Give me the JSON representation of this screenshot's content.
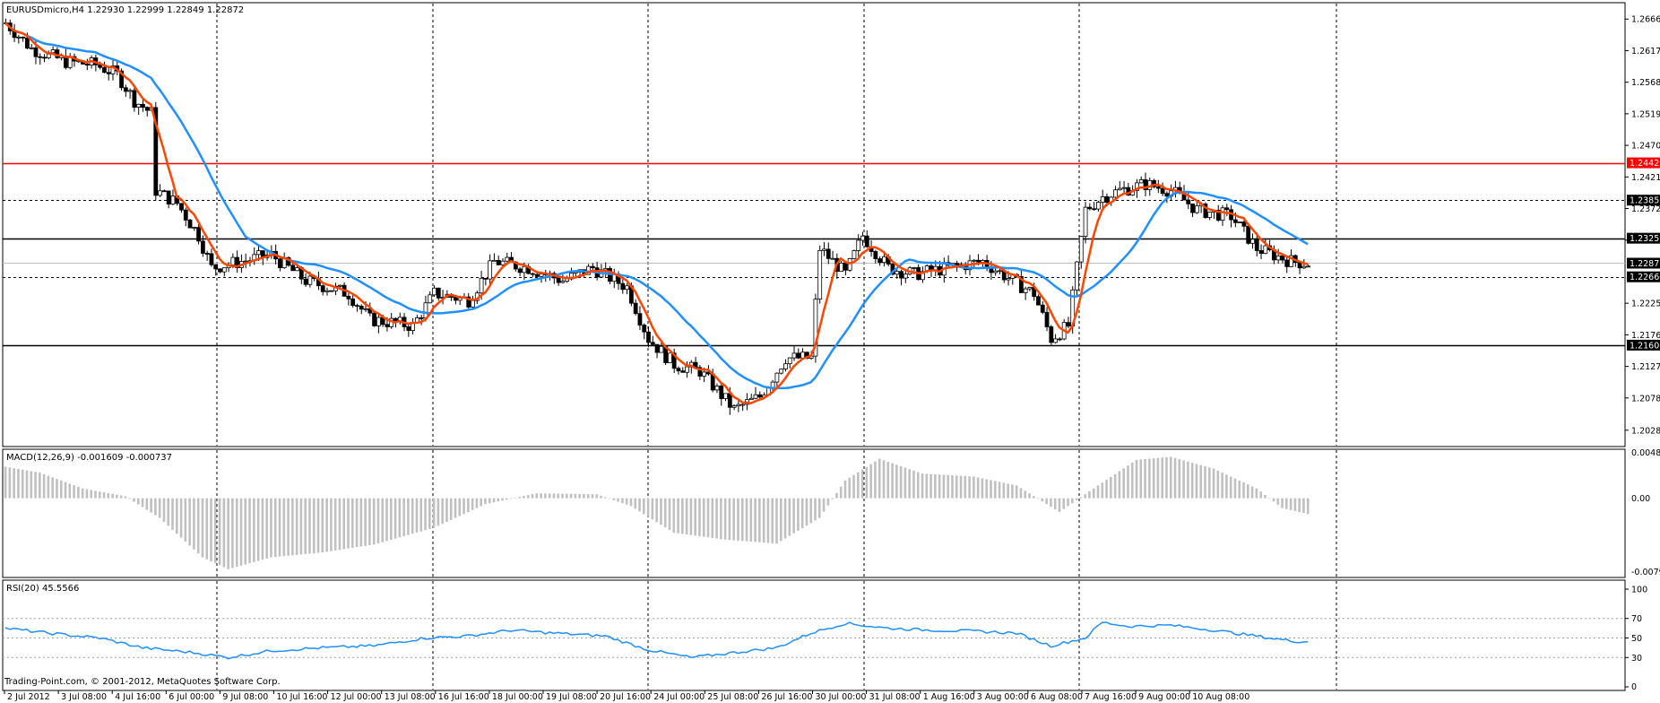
{
  "main_title": "EURUSDmicro,H4  1.22930 1.22999 1.22849 1.22872",
  "macd_title": "MACD(12,26,9) -0.001609 -0.000737",
  "rsi_title": "RSI(20) 45.5566",
  "copyright": "Trading-Point.com, © 2001-2012, MetaQuotes Software Corp.",
  "colors": {
    "up_candle": "#ffffff",
    "down_candle": "#000000",
    "fast_ma": "#ff4500",
    "slow_ma": "#1e90ff",
    "resistance_line": "#ff0000",
    "macd_hist": "#c0c0c0",
    "rsi_line": "#1e90ff"
  },
  "price_axis": {
    "min": 1.2004,
    "max": 1.269,
    "ticks": [
      "1.26660",
      "1.26170",
      "1.25680",
      "1.25190",
      "1.24700",
      "1.24210",
      "1.23720",
      "1.23230",
      "1.22250",
      "1.21760",
      "1.21270",
      "1.20780",
      "1.20280"
    ]
  },
  "horizontal_lines": [
    {
      "price": 1.24429,
      "style": "solid",
      "color": "#ff0000",
      "label": "1.24429"
    },
    {
      "price": 1.2385,
      "style": "dashed",
      "color": "#000000",
      "label": "1.23850"
    },
    {
      "price": 1.23259,
      "style": "solid",
      "color": "#000000",
      "label": "1.23259"
    },
    {
      "price": 1.2266,
      "style": "dashed",
      "color": "#000000",
      "label": "1.22660"
    },
    {
      "price": 1.216,
      "style": "solid",
      "color": "#000000",
      "label": "1.21600"
    }
  ],
  "current_price": {
    "price": 1.22872,
    "label": "1.22872"
  },
  "time_axis": [
    "2 Jul 2012",
    "3 Jul 08:00",
    "4 Jul 16:00",
    "6 Jul 00:00",
    "9 Jul 08:00",
    "10 Jul 16:00",
    "12 Jul 00:00",
    "13 Jul 08:00",
    "16 Jul 16:00",
    "18 Jul 00:00",
    "19 Jul 08:00",
    "20 Jul 16:00",
    "24 Jul 00:00",
    "25 Jul 08:00",
    "26 Jul 16:00",
    "30 Jul 00:00",
    "31 Jul 08:00",
    "1 Aug 16:00",
    "3 Aug 00:00",
    "6 Aug 08:00",
    "7 Aug 16:00",
    "9 Aug 00:00",
    "10 Aug 08:00"
  ],
  "separator_labels": [
    "6 Jul 00:00",
    "13 Jul 08:00",
    "20 Jul 16:00",
    "30 Jul 00:00",
    "3 Aug 00:00",
    "10 Aug 08:00"
  ],
  "macd_axis": {
    "top_label": "0.00488",
    "zero_label": "0.00",
    "bottom_label": "-0.00795",
    "max": 0.00488,
    "min": -0.00795
  },
  "rsi_axis": {
    "ticks": [
      100,
      70,
      50,
      30,
      0
    ],
    "labels": [
      "100",
      "70",
      "50",
      "30",
      "0"
    ]
  },
  "price_keypoints": [
    [
      0,
      1.266
    ],
    [
      6,
      1.262
    ],
    [
      14,
      1.26
    ],
    [
      21,
      1.2595
    ],
    [
      26,
      1.258
    ],
    [
      30,
      1.254
    ],
    [
      34,
      1.252
    ],
    [
      35,
      1.24
    ],
    [
      40,
      1.238
    ],
    [
      45,
      1.233
    ],
    [
      48,
      1.228
    ],
    [
      55,
      1.229
    ],
    [
      62,
      1.23
    ],
    [
      70,
      1.226
    ],
    [
      80,
      1.224
    ],
    [
      85,
      1.22
    ],
    [
      95,
      1.219
    ],
    [
      100,
      1.224
    ],
    [
      108,
      1.223
    ],
    [
      114,
      1.229
    ],
    [
      122,
      1.228
    ],
    [
      130,
      1.226
    ],
    [
      137,
      1.228
    ],
    [
      145,
      1.225
    ],
    [
      150,
      1.217
    ],
    [
      156,
      1.213
    ],
    [
      162,
      1.212
    ],
    [
      170,
      1.206
    ],
    [
      176,
      1.208
    ],
    [
      182,
      1.214
    ],
    [
      188,
      1.214
    ],
    [
      190,
      1.231
    ],
    [
      196,
      1.227
    ],
    [
      200,
      1.233
    ],
    [
      206,
      1.228
    ],
    [
      212,
      1.227
    ],
    [
      220,
      1.228
    ],
    [
      228,
      1.229
    ],
    [
      235,
      1.226
    ],
    [
      240,
      1.224
    ],
    [
      244,
      1.217
    ],
    [
      248,
      1.219
    ],
    [
      252,
      1.237
    ],
    [
      256,
      1.239
    ],
    [
      260,
      1.24
    ],
    [
      266,
      1.241
    ],
    [
      272,
      1.24
    ],
    [
      278,
      1.237
    ],
    [
      286,
      1.236
    ],
    [
      292,
      1.231
    ],
    [
      300,
      1.229
    ],
    [
      304,
      1.2287
    ]
  ],
  "macd_keypoints": [
    [
      0,
      0.0032
    ],
    [
      8,
      0.0026
    ],
    [
      18,
      0.001
    ],
    [
      28,
      0.0002
    ],
    [
      36,
      -0.002
    ],
    [
      46,
      -0.006
    ],
    [
      52,
      -0.0072
    ],
    [
      62,
      -0.006
    ],
    [
      74,
      -0.0055
    ],
    [
      86,
      -0.0047
    ],
    [
      100,
      -0.003
    ],
    [
      112,
      -0.0006
    ],
    [
      124,
      0.0005
    ],
    [
      138,
      0.0004
    ],
    [
      146,
      -0.0008
    ],
    [
      156,
      -0.0035
    ],
    [
      168,
      -0.0042
    ],
    [
      180,
      -0.0046
    ],
    [
      190,
      -0.002
    ],
    [
      196,
      0.0018
    ],
    [
      204,
      0.004
    ],
    [
      214,
      0.0025
    ],
    [
      226,
      0.0022
    ],
    [
      236,
      0.0013
    ],
    [
      246,
      -0.0014
    ],
    [
      254,
      0.001
    ],
    [
      264,
      0.0039
    ],
    [
      272,
      0.0042
    ],
    [
      282,
      0.003
    ],
    [
      292,
      0.001
    ],
    [
      298,
      -0.001
    ],
    [
      304,
      -0.0016
    ]
  ],
  "rsi_keypoints": [
    [
      0,
      60
    ],
    [
      10,
      55
    ],
    [
      22,
      50
    ],
    [
      32,
      40
    ],
    [
      44,
      35
    ],
    [
      52,
      30
    ],
    [
      62,
      37
    ],
    [
      74,
      40
    ],
    [
      86,
      42
    ],
    [
      98,
      50
    ],
    [
      108,
      52
    ],
    [
      118,
      58
    ],
    [
      128,
      55
    ],
    [
      140,
      52
    ],
    [
      150,
      38
    ],
    [
      160,
      30
    ],
    [
      170,
      35
    ],
    [
      180,
      40
    ],
    [
      188,
      55
    ],
    [
      196,
      65
    ],
    [
      206,
      60
    ],
    [
      216,
      58
    ],
    [
      226,
      57
    ],
    [
      236,
      55
    ],
    [
      244,
      42
    ],
    [
      252,
      50
    ],
    [
      256,
      66
    ],
    [
      262,
      62
    ],
    [
      272,
      63
    ],
    [
      282,
      58
    ],
    [
      292,
      52
    ],
    [
      300,
      47
    ],
    [
      304,
      46
    ]
  ]
}
